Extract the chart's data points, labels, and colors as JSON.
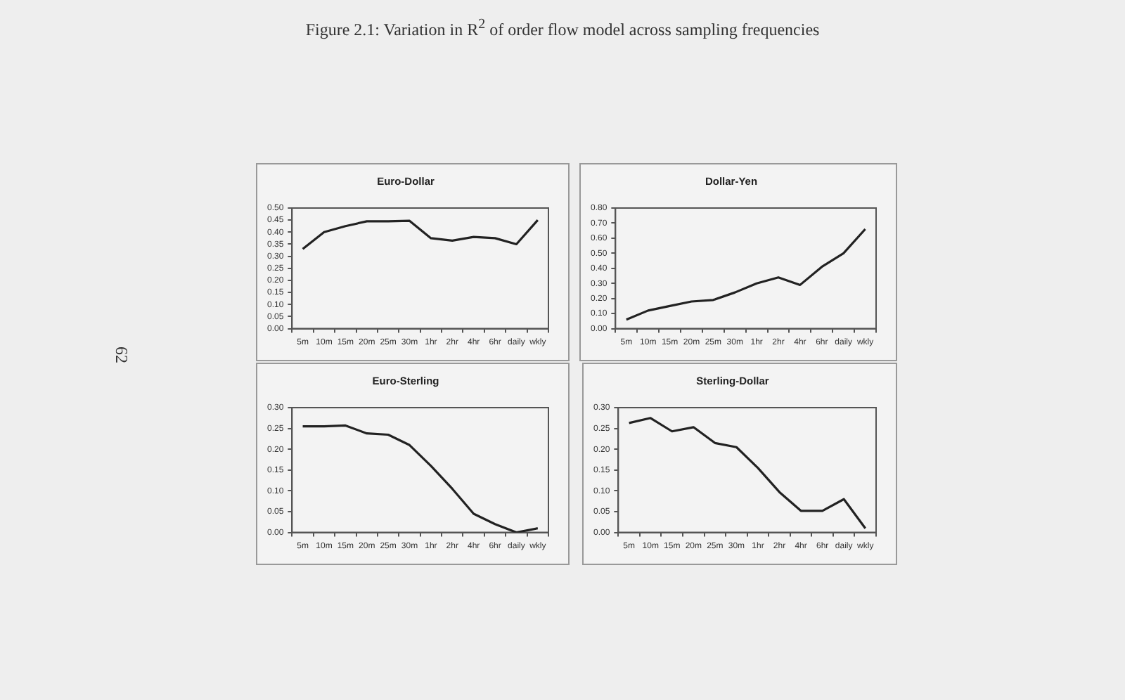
{
  "chart_data": [
    {
      "type": "line",
      "title": "Euro-Dollar",
      "annotations": [
        "Figure 2.1: Variation in R$^{2}$ of order flow model across sampling frequencies",
        "62"
      ],
      "categories": [
        "5m",
        "10m",
        "15m",
        "20m",
        "25m",
        "30m",
        "1hr",
        "2hr",
        "4hr",
        "6hr",
        "daily",
        "wkly"
      ],
      "series": [
        {
          "color": "#222222",
          "values": [
            0.33,
            0.4,
            0.425,
            0.445,
            0.445,
            0.447,
            0.375,
            0.365,
            0.38,
            0.375,
            0.35,
            0.45
          ]
        }
      ],
      "ylim": [
        0,
        0.5
      ],
      "yticks": [
        {
          "value": 0,
          "label": "0.00"
        },
        {
          "value": 0.05,
          "label": "0.05"
        },
        {
          "value": 0.1,
          "label": "0.10"
        },
        {
          "value": 0.15,
          "label": "0.15"
        },
        {
          "value": 0.2,
          "label": "0.20"
        },
        {
          "value": 0.25,
          "label": "0.25"
        },
        {
          "value": 0.3,
          "label": "0.30"
        },
        {
          "value": 0.35,
          "label": "0.35"
        },
        {
          "value": 0.4,
          "label": "0.40"
        },
        {
          "value": 0.45,
          "label": "0.45"
        },
        {
          "value": 0.5,
          "label": "0.50"
        }
      ],
      "grid": false,
      "legend": false,
      "marker": "none",
      "line_style": "solid"
    },
    {
      "type": "line",
      "title": "Dollar-Yen",
      "categories": [
        "5m",
        "10m",
        "15m",
        "20m",
        "25m",
        "30m",
        "1hr",
        "2hr",
        "4hr",
        "6hr",
        "daily",
        "wkly"
      ],
      "series": [
        {
          "color": "#222222",
          "values": [
            0.06,
            0.12,
            0.15,
            0.18,
            0.19,
            0.24,
            0.3,
            0.34,
            0.29,
            0.41,
            0.5,
            0.66
          ]
        }
      ],
      "ylim": [
        0,
        0.8
      ],
      "yticks": [
        {
          "value": 0,
          "label": "0.00"
        },
        {
          "value": 0.1,
          "label": "0.10"
        },
        {
          "value": 0.2,
          "label": "0.20"
        },
        {
          "value": 0.3,
          "label": "0.30"
        },
        {
          "value": 0.4,
          "label": "0.40"
        },
        {
          "value": 0.5,
          "label": "0.50"
        },
        {
          "value": 0.6,
          "label": "0.60"
        },
        {
          "value": 0.7,
          "label": "0.70"
        },
        {
          "value": 0.8,
          "label": "0.80"
        }
      ],
      "grid": false,
      "legend": false,
      "marker": "none",
      "line_style": "solid"
    },
    {
      "type": "line",
      "title": "Euro-Sterling",
      "categories": [
        "5m",
        "10m",
        "15m",
        "20m",
        "25m",
        "30m",
        "1hr",
        "2hr",
        "4hr",
        "6hr",
        "daily",
        "wkly"
      ],
      "series": [
        {
          "color": "#222222",
          "values": [
            0.255,
            0.255,
            0.257,
            0.238,
            0.235,
            0.21,
            0.16,
            0.105,
            0.045,
            0.02,
            0.0,
            0.01
          ]
        }
      ],
      "ylim": [
        0,
        0.3
      ],
      "yticks": [
        {
          "value": 0,
          "label": "0.00"
        },
        {
          "value": 0.05,
          "label": "0.05"
        },
        {
          "value": 0.1,
          "label": "0.10"
        },
        {
          "value": 0.15,
          "label": "0.15"
        },
        {
          "value": 0.2,
          "label": "0.20"
        },
        {
          "value": 0.25,
          "label": "0.25"
        },
        {
          "value": 0.3,
          "label": "0.30"
        }
      ],
      "grid": false,
      "legend": false,
      "marker": "none",
      "line_style": "solid"
    },
    {
      "type": "line",
      "title": "Sterling-Dollar",
      "categories": [
        "5m",
        "10m",
        "15m",
        "20m",
        "25m",
        "30m",
        "1hr",
        "2hr",
        "4hr",
        "6hr",
        "daily",
        "wkly"
      ],
      "series": [
        {
          "color": "#222222",
          "values": [
            0.263,
            0.275,
            0.243,
            0.253,
            0.215,
            0.205,
            0.155,
            0.097,
            0.052,
            0.052,
            0.08,
            0.01
          ]
        }
      ],
      "ylim": [
        0,
        0.3
      ],
      "yticks": [
        {
          "value": 0,
          "label": "0.00"
        },
        {
          "value": 0.05,
          "label": "0.05"
        },
        {
          "value": 0.1,
          "label": "0.10"
        },
        {
          "value": 0.15,
          "label": "0.15"
        },
        {
          "value": 0.2,
          "label": "0.20"
        },
        {
          "value": 0.25,
          "label": "0.25"
        },
        {
          "value": 0.3,
          "label": "0.30"
        }
      ],
      "grid": false,
      "legend": false,
      "marker": "none",
      "line_style": "solid"
    }
  ]
}
